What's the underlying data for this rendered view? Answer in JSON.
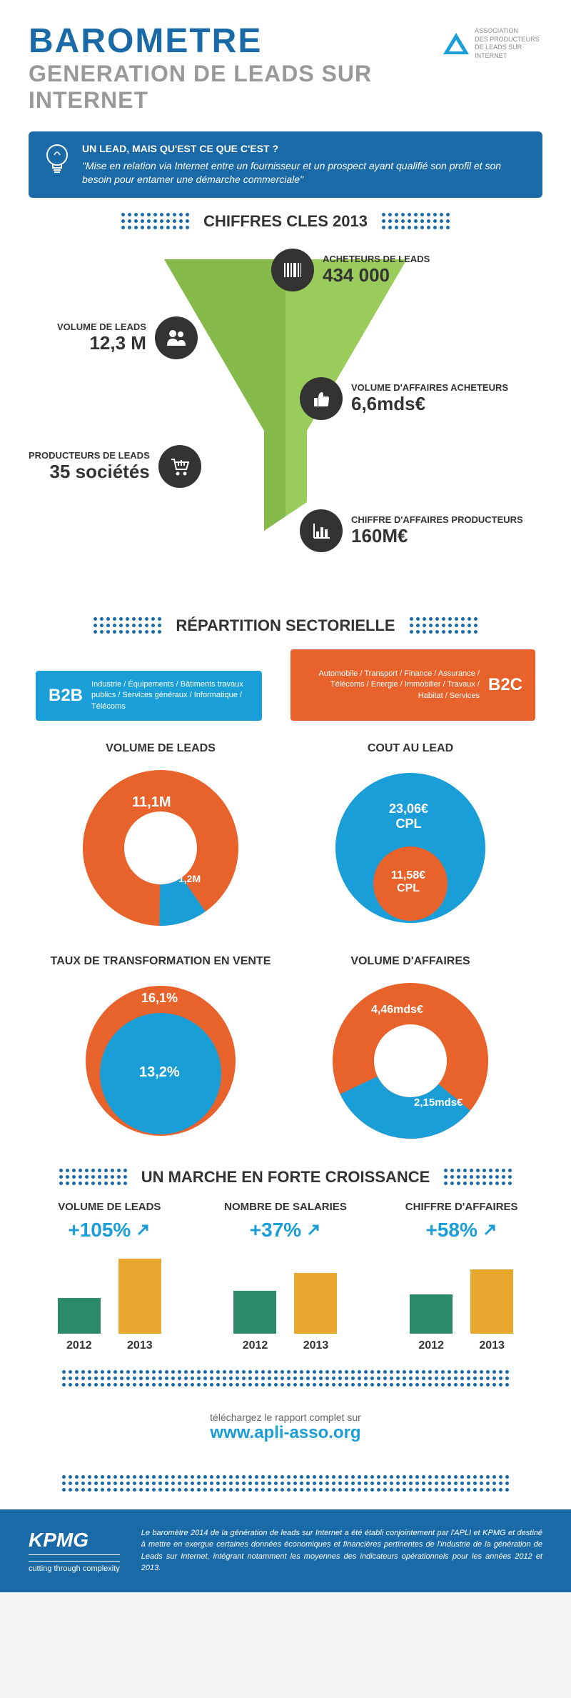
{
  "header": {
    "title1": "BAROMETRE",
    "title2": "GENERATION DE LEADS SUR INTERNET",
    "logo_text": "ASSOCIATION\nDES PRODUCTEURS\nDE LEADS SUR INTERNET"
  },
  "lead_def": {
    "question": "UN LEAD, MAIS QU'EST CE QUE C'EST ?",
    "answer": "\"Mise en relation via Internet entre un fournisseur et un prospect ayant qualifié son profil et son besoin pour entamer une démarche commerciale\""
  },
  "sections": {
    "chiffres": "CHIFFRES CLES 2013",
    "repartition": "RÉPARTITION SECTORIELLE",
    "croissance": "UN MARCHE EN FORTE CROISSANCE"
  },
  "funnel_stats": {
    "acheteurs": {
      "label": "ACHETEURS DE LEADS",
      "value": "434 000"
    },
    "volume_leads": {
      "label": "VOLUME DE LEADS",
      "value": "12,3 M"
    },
    "volume_affaires": {
      "label": "VOLUME D'AFFAIRES ACHETEURS",
      "value": "6,6mds€"
    },
    "producteurs": {
      "label": "PRODUCTEURS DE LEADS",
      "value": "35 sociétés"
    },
    "chiffre_affaires": {
      "label": "CHIFFRE D'AFFAIRES PRODUCTEURS",
      "value": "160M€"
    }
  },
  "sector_tags": {
    "b2b": {
      "label": "B2B",
      "text": "Industrie / Équipements / Bâtiments travaux publics / Services généraux / Informatique / Télécoms"
    },
    "b2c": {
      "label": "B2C",
      "text": "Automobile / Transport / Finance / Assurance / Télécoms / Energie / Immobilier / Travaux / Habitat / Services"
    }
  },
  "colors": {
    "blue": "#1a9ed8",
    "orange": "#e8632c",
    "dark_blue": "#1a6aa8",
    "teal": "#2a8a6a",
    "yellow": "#e8a830"
  },
  "donuts": {
    "volume": {
      "title": "VOLUME DE LEADS",
      "type": "donut",
      "b2c_value": "11,1M",
      "b2b_value": "1,2M",
      "b2c_pct": 90,
      "b2b_pct": 10,
      "b2c_color": "#e8632c",
      "b2b_color": "#1a9ed8",
      "hole": 0.5
    },
    "cout": {
      "title": "COUT AU LEAD",
      "type": "nested-circle",
      "outer_value": "23,06€\nCPL",
      "inner_value": "11,58€\nCPL",
      "outer_color": "#1a9ed8",
      "inner_color": "#e8632c",
      "inner_ratio": 0.5
    },
    "taux": {
      "title": "TAUX DE TRANSFORMATION EN VENTE",
      "type": "nested-circle",
      "outer_value": "16,1%",
      "inner_value": "13,2%",
      "outer_color": "#e8632c",
      "inner_color": "#1a9ed8",
      "inner_ratio": 0.78
    },
    "affaires": {
      "title": "VOLUME D'AFFAIRES",
      "type": "donut",
      "b2c_value": "4,46mds€",
      "b2b_value": "2,15mds€",
      "b2c_pct": 68,
      "b2b_pct": 32,
      "b2c_color": "#e8632c",
      "b2b_color": "#1a9ed8",
      "hole": 0.5
    }
  },
  "growth": {
    "volume": {
      "title": "VOLUME DE LEADS",
      "pct": "+105%",
      "bar2012": 50,
      "bar2013": 105
    },
    "salaries": {
      "title": "NOMBRE DE SALARIES",
      "pct": "+37%",
      "bar2012": 60,
      "bar2013": 85
    },
    "chiffre": {
      "title": "CHIFFRE D'AFFAIRES",
      "pct": "+58%",
      "bar2012": 55,
      "bar2013": 90
    }
  },
  "year_labels": {
    "y2012": "2012",
    "y2013": "2013"
  },
  "download": {
    "text": "téléchargez le rapport complet sur",
    "url": "www.apli-asso.org"
  },
  "footer": {
    "kpmg": "KPMG",
    "kpmg_tag": "cutting through complexity",
    "text": "Le baromètre 2014 de la génération de leads sur Internet a été établi conjointement par l'APLI et KPMG et destiné à mettre en exergue certaines données économiques et financières pertinentes de l'industrie de la génération de Leads sur Internet, intégrant notamment les moyennes des indicateurs opérationnels pour les années 2012 et 2013."
  }
}
